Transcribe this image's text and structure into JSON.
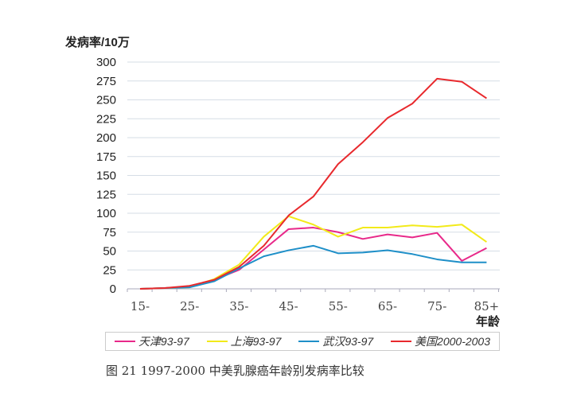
{
  "chart_data": {
    "type": "line",
    "title": "",
    "ylabel": "发病率/10万",
    "xlabel": "年龄",
    "ylim": [
      0,
      300
    ],
    "yticks": [
      0,
      25,
      50,
      75,
      100,
      125,
      150,
      175,
      200,
      225,
      250,
      275,
      300
    ],
    "xtick_labels": [
      "15-",
      "25-",
      "35-",
      "45-",
      "55-",
      "65-",
      "75-",
      "85+"
    ],
    "categories": [
      "15-",
      "20-",
      "25-",
      "30-",
      "35-",
      "40-",
      "45-",
      "50-",
      "55-",
      "60-",
      "65-",
      "70-",
      "75-",
      "80-",
      "85+"
    ],
    "series": [
      {
        "name": "天津93-97",
        "color": "#e8298a",
        "values": [
          0,
          1,
          3,
          12,
          25,
          52,
          79,
          81,
          75,
          66,
          72,
          68,
          74,
          37,
          54
        ]
      },
      {
        "name": "上海93-97",
        "color": "#f2ea1a",
        "values": [
          0,
          1,
          2,
          13,
          32,
          69,
          96,
          85,
          69,
          81,
          81,
          84,
          82,
          85,
          62
        ]
      },
      {
        "name": "武汉93-97",
        "color": "#1e8fc8",
        "values": [
          0,
          1,
          2,
          10,
          27,
          43,
          51,
          57,
          47,
          48,
          51,
          46,
          39,
          35,
          35
        ]
      },
      {
        "name": "美国2000-2003",
        "color": "#e8292d",
        "values": [
          0,
          1,
          4,
          12,
          29,
          57,
          97,
          122,
          165,
          194,
          226,
          245,
          278,
          274,
          252
        ]
      }
    ],
    "grid": true,
    "legend_placement": "bottom"
  },
  "caption": "图 21    1997-2000 中美乳腺癌年龄别发病率比较"
}
